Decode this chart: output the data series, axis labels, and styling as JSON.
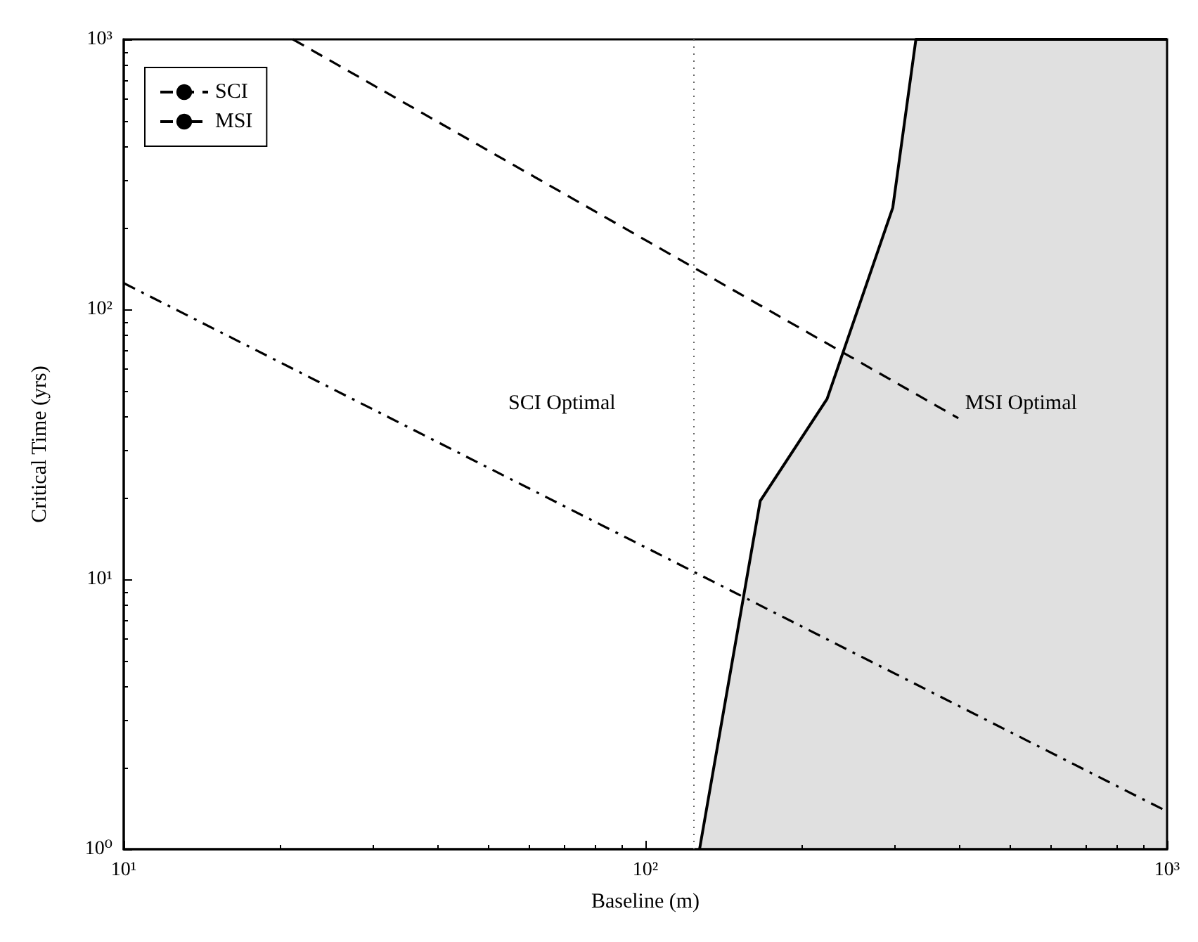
{
  "chart_data": {
    "type": "line",
    "xlabel": "Baseline (m)",
    "ylabel": "Critical Time (yrs)",
    "log": "xy",
    "xlim": [
      10,
      1000
    ],
    "ylim": [
      1,
      1000
    ],
    "xticks": [
      {
        "value": 10,
        "label": "10¹"
      },
      {
        "value": 100,
        "label": "10²"
      },
      {
        "value": 1000,
        "label": "10³"
      }
    ],
    "yticks": [
      {
        "value": 1,
        "label": "10⁰"
      },
      {
        "value": 10,
        "label": "10¹"
      },
      {
        "value": 100,
        "label": "10²"
      },
      {
        "value": 1000,
        "label": "10³"
      }
    ],
    "grid": false,
    "legend": "top left",
    "marker": "none",
    "series": [
      {
        "name": "SCI",
        "color": "#000000",
        "line_style": "dashed",
        "x": [
          21.1,
          398
        ],
        "values": [
          1000,
          39.5
        ]
      },
      {
        "name": "MSI",
        "color": "#000000",
        "line_style": "dashdot",
        "x": [
          10,
          1000
        ],
        "values": [
          125,
          1.38
        ]
      },
      {
        "type": "area",
        "color": "#000000",
        "line_style": "solid",
        "x": [
          127,
          166,
          223,
          298,
          330,
          1000
        ],
        "values": [
          1,
          19.5,
          46.6,
          238,
          1000,
          1000
        ]
      }
    ],
    "ref_lines": [
      {
        "axis": "x",
        "value": 124,
        "line_style": "dotted",
        "color": "#666666"
      }
    ],
    "annotations": [
      "SCI Optimal",
      "MSI Optimal"
    ]
  }
}
